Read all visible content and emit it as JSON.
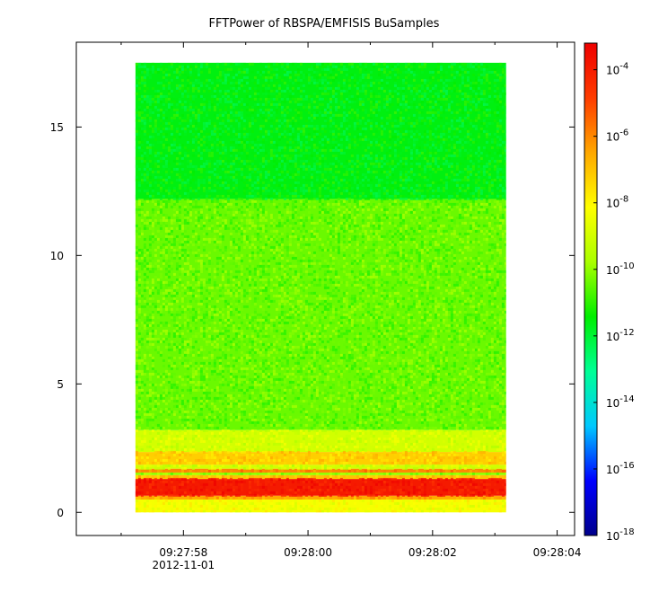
{
  "chart_data": {
    "type": "heatmap",
    "title": "FFTPower of RBSPA/EMFISIS  BuSamples",
    "xlabel": "",
    "ylabel": "",
    "x_ticks": [
      {
        "value": 0,
        "label": "09:27:58",
        "sublabel": "2012-11-01"
      },
      {
        "value": 2,
        "label": "09:28:00"
      },
      {
        "value": 4,
        "label": "09:28:02"
      },
      {
        "value": 6,
        "label": "09:28:04"
      }
    ],
    "x_minor_ticks": [
      -1,
      1,
      3,
      5
    ],
    "xlim": [
      -1.72,
      6.28
    ],
    "data_xrange": [
      -0.77,
      5.18
    ],
    "y_ticks": [
      0,
      5,
      10,
      15
    ],
    "ylim": [
      -0.9,
      18.3
    ],
    "data_yrange": [
      0,
      17.5
    ],
    "grid": false,
    "colorbar": {
      "scale": "log",
      "range": [
        -18,
        -3.2
      ],
      "ticks": [
        {
          "value": -4,
          "base": "10",
          "exp": "-4"
        },
        {
          "value": -6,
          "base": "10",
          "exp": "-6"
        },
        {
          "value": -8,
          "base": "10",
          "exp": "-8"
        },
        {
          "value": -10,
          "base": "10",
          "exp": "-10"
        },
        {
          "value": -12,
          "base": "10",
          "exp": "-12"
        },
        {
          "value": -14,
          "base": "10",
          "exp": "-14"
        },
        {
          "value": -16,
          "base": "10",
          "exp": "-16"
        },
        {
          "value": -18,
          "base": "10",
          "exp": "-18"
        }
      ],
      "colors": [
        "#00008c",
        "#0000ff",
        "#00c8ff",
        "#00ff96",
        "#00ee00",
        "#aaff00",
        "#ffff00",
        "#ffa800",
        "#ff3c00",
        "#ee0000"
      ]
    },
    "bands": [
      {
        "y0": 0.0,
        "y1": 0.5,
        "log_power": -8.3
      },
      {
        "y0": 0.5,
        "y1": 0.65,
        "log_power": -6.5
      },
      {
        "y0": 0.65,
        "y1": 1.3,
        "log_power": -3.9
      },
      {
        "y0": 1.3,
        "y1": 1.45,
        "log_power": -7.0
      },
      {
        "y0": 1.45,
        "y1": 1.55,
        "log_power": -10.0
      },
      {
        "y0": 1.55,
        "y1": 1.7,
        "log_power": -6.0
      },
      {
        "y0": 1.7,
        "y1": 1.85,
        "log_power": -9.0
      },
      {
        "y0": 1.85,
        "y1": 2.35,
        "log_power": -7.2
      },
      {
        "y0": 2.35,
        "y1": 3.2,
        "log_power": -9.0
      },
      {
        "y0": 3.2,
        "y1": 12.2,
        "log_power": -10.4
      },
      {
        "y0": 12.2,
        "y1": 17.5,
        "log_power": -11.6
      }
    ]
  }
}
